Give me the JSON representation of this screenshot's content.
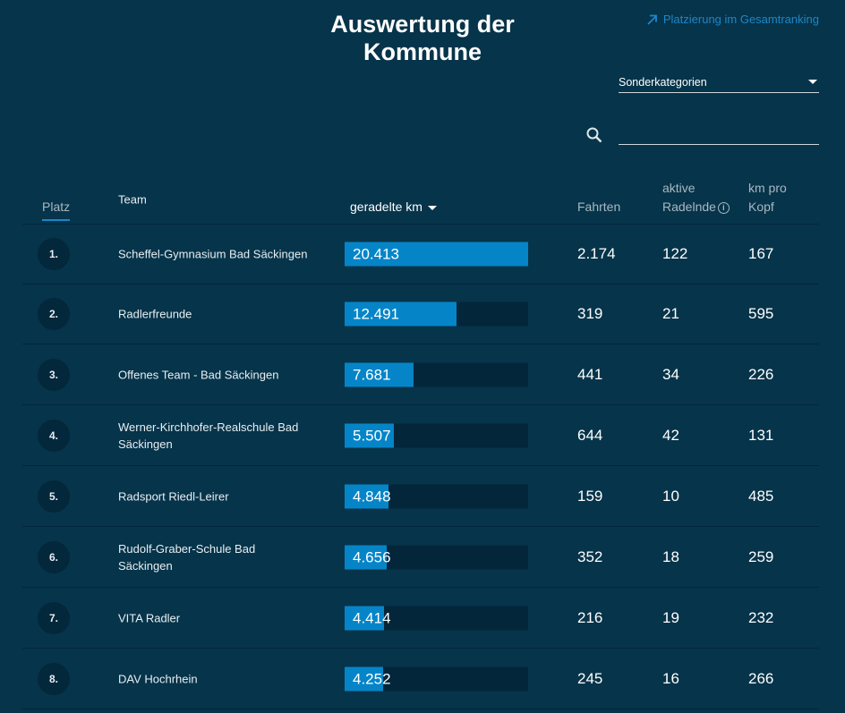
{
  "header": {
    "title_line1": "Auswertung der",
    "title_line2": "Kommune",
    "link_label": "Platzierung im Gesamtranking"
  },
  "filter": {
    "select_value": "Sonderkategorien",
    "search_placeholder": "",
    "search_value": ""
  },
  "table": {
    "columns": {
      "platz": "Platz",
      "team": "Team",
      "km": "geradelte km",
      "fahrten": "Fahrten",
      "aktiv_line1": "aktive",
      "aktiv_line2": "Radelnde",
      "kopf_line1": "km pro",
      "kopf_line2": "Kopf"
    },
    "max_km": 20413,
    "rows": [
      {
        "rank": "1.",
        "team": "Scheffel-Gymnasium Bad Säckingen",
        "km": "20.413",
        "km_value": 20413,
        "fahrten": "2.174",
        "aktiv": "122",
        "kopf": "167"
      },
      {
        "rank": "2.",
        "team": "Radlerfreunde",
        "km": "12.491",
        "km_value": 12491,
        "fahrten": "319",
        "aktiv": "21",
        "kopf": "595"
      },
      {
        "rank": "3.",
        "team": "Offenes Team - Bad Säckingen",
        "km": "7.681",
        "km_value": 7681,
        "fahrten": "441",
        "aktiv": "34",
        "kopf": "226"
      },
      {
        "rank": "4.",
        "team": "Werner-Kirchhofer-Realschule Bad Säckingen",
        "km": "5.507",
        "km_value": 5507,
        "fahrten": "644",
        "aktiv": "42",
        "kopf": "131"
      },
      {
        "rank": "5.",
        "team": "Radsport Riedl-Leirer",
        "km": "4.848",
        "km_value": 4848,
        "fahrten": "159",
        "aktiv": "10",
        "kopf": "485"
      },
      {
        "rank": "6.",
        "team": "Rudolf-Graber-Schule Bad Säckingen",
        "km": "4.656",
        "km_value": 4656,
        "fahrten": "352",
        "aktiv": "18",
        "kopf": "259"
      },
      {
        "rank": "7.",
        "team": "VITA Radler",
        "km": "4.414",
        "km_value": 4414,
        "fahrten": "216",
        "aktiv": "19",
        "kopf": "232"
      },
      {
        "rank": "8.",
        "team": "DAV Hochrhein",
        "km": "4.252",
        "km_value": 4252,
        "fahrten": "245",
        "aktiv": "16",
        "kopf": "266"
      }
    ]
  },
  "colors": {
    "background": "#06344a",
    "accent": "#0585c8",
    "link": "#1d86c8",
    "bar_track": "#03263a"
  }
}
